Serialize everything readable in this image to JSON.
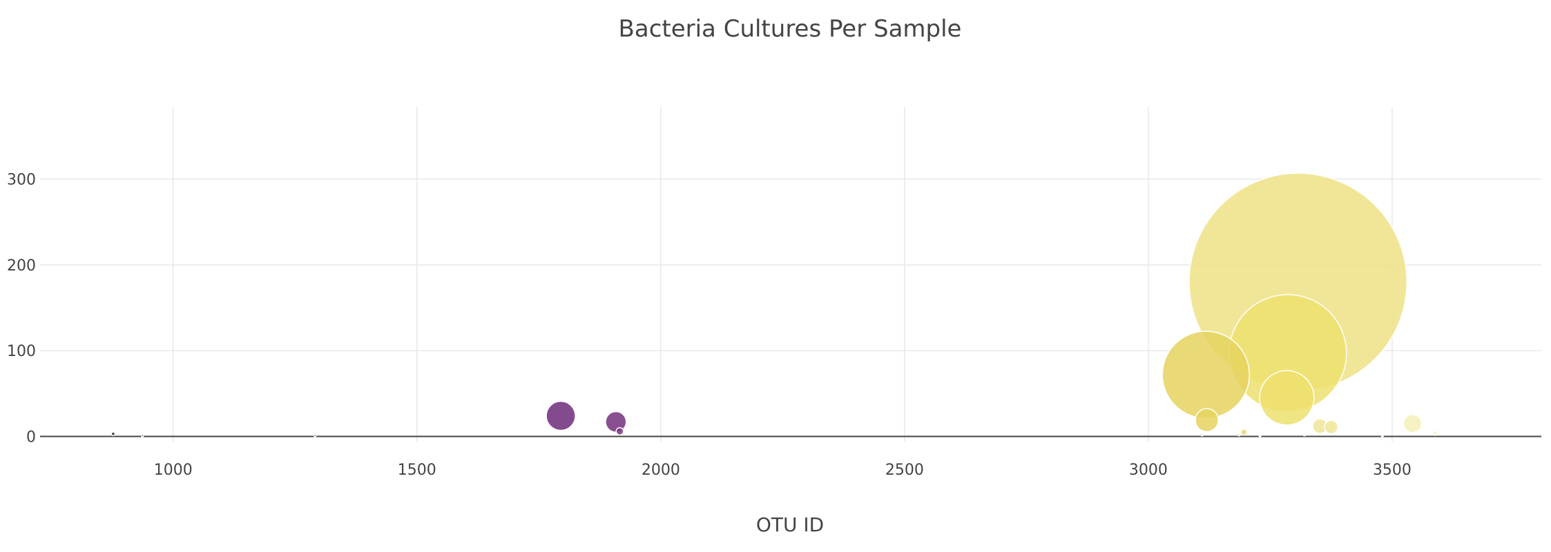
{
  "chart_data": {
    "type": "scatter",
    "subtype": "bubble",
    "title": "Bacteria Cultures Per Sample",
    "xlabel": "OTU ID",
    "ylabel": "",
    "xlim": [
      727,
      3806
    ],
    "ylim": [
      -6,
      384
    ],
    "x_ticks": [
      1000,
      1500,
      2000,
      2500,
      3000,
      3500
    ],
    "x_tick_labels": [
      "1000",
      "1500",
      "2000",
      "2500",
      "3000",
      "3500"
    ],
    "y_ticks": [
      0,
      100,
      200,
      300
    ],
    "y_tick_labels": [
      "0",
      "100",
      "200",
      "300"
    ],
    "grid": true,
    "legend": false,
    "colorscale": "Viridis-like (dark purple → yellow by OTU ID)",
    "points": [
      {
        "x": 3307,
        "y": 180,
        "size": 180,
        "color": "#efe285"
      },
      {
        "x": 3286,
        "y": 97,
        "size": 97,
        "color": "#ede06f"
      },
      {
        "x": 3118,
        "y": 72,
        "size": 72,
        "color": "#e5d35f"
      },
      {
        "x": 3284,
        "y": 45,
        "size": 45,
        "color": "#ede06f"
      },
      {
        "x": 1795,
        "y": 24,
        "size": 24,
        "color": "#6e2a7a"
      },
      {
        "x": 3120,
        "y": 19,
        "size": 19,
        "color": "#e5d35f"
      },
      {
        "x": 1908,
        "y": 17,
        "size": 17,
        "color": "#74307e"
      },
      {
        "x": 3542,
        "y": 15,
        "size": 15,
        "color": "#f6f0b8"
      },
      {
        "x": 3352,
        "y": 12,
        "size": 12,
        "color": "#f0e597"
      },
      {
        "x": 3375,
        "y": 11,
        "size": 11,
        "color": "#f0e597"
      },
      {
        "x": 1916,
        "y": 6,
        "size": 6,
        "color": "#7a3383"
      },
      {
        "x": 3196,
        "y": 5,
        "size": 5,
        "color": "#e8d970"
      },
      {
        "x": 3588,
        "y": 4,
        "size": 4,
        "color": "#f8f3c8"
      },
      {
        "x": 877,
        "y": 3,
        "size": 3,
        "color": "#2a2a2e"
      },
      {
        "x": 3186,
        "y": 2,
        "size": 2,
        "color": "#e8d970"
      },
      {
        "x": 3320,
        "y": 2,
        "size": 2,
        "color": "#f0e597"
      },
      {
        "x": 3110,
        "y": 2,
        "size": 2,
        "color": "#e5d35f"
      },
      {
        "x": 3229,
        "y": 1,
        "size": 1,
        "color": "#ebdc78"
      },
      {
        "x": 3480,
        "y": 1,
        "size": 1,
        "color": "#f6f0b8"
      },
      {
        "x": 937,
        "y": 1,
        "size": 1,
        "color": "#3a3040"
      },
      {
        "x": 1291,
        "y": 1,
        "size": 1,
        "color": "#4a3250"
      }
    ]
  }
}
